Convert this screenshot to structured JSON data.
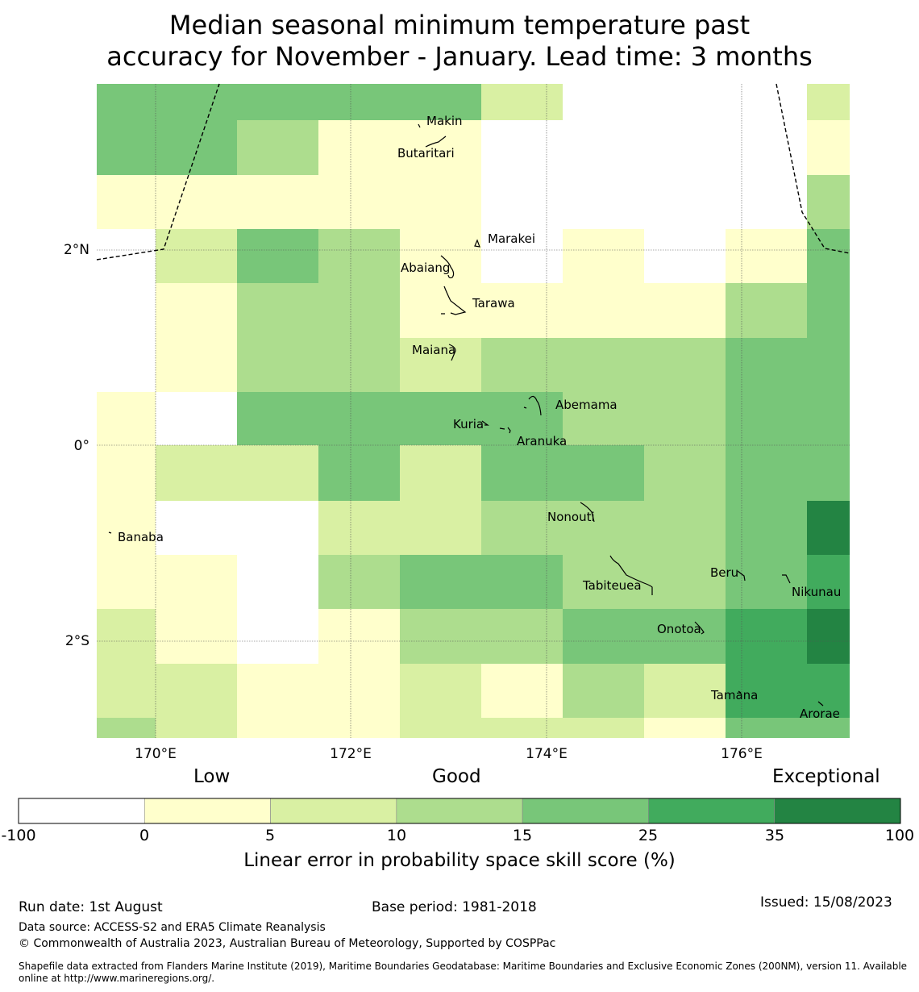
{
  "title_line1": "Median seasonal minimum temperature past",
  "title_line2": "accuracy for November - January. Lead time: 3 months",
  "map": {
    "lat_labels": [
      "2°N",
      "0°",
      "2°S"
    ],
    "lon_labels": [
      "170°E",
      "172°E",
      "174°E",
      "176°E"
    ],
    "islands": [
      "Makin",
      "Butaritari",
      "Marakei",
      "Abaiang",
      "Tarawa",
      "Maiana",
      "Abemama",
      "Kuria",
      "Aranuka",
      "Nonouti",
      "Banaba",
      "Beru",
      "Nikunau",
      "Tabiteuea",
      "Onotoa",
      "Tamana",
      "Arorae"
    ],
    "classes": [
      "#ffffff",
      "#ffffcc",
      "#d9f0a3",
      "#addd8e",
      "#78c679",
      "#41ab5d",
      "#238443"
    ],
    "grid_rows": [
      [
        4,
        4,
        4,
        4,
        4,
        2,
        0,
        0,
        0,
        2
      ],
      [
        4,
        4,
        3,
        1,
        1,
        0,
        0,
        0,
        0,
        1
      ],
      [
        1,
        1,
        1,
        1,
        1,
        0,
        0,
        0,
        0,
        3
      ],
      [
        0,
        2,
        4,
        3,
        1,
        0,
        1,
        0,
        1,
        4
      ],
      [
        0,
        1,
        3,
        3,
        1,
        1,
        1,
        1,
        3,
        4
      ],
      [
        0,
        1,
        3,
        3,
        2,
        3,
        3,
        3,
        4,
        4
      ],
      [
        1,
        0,
        4,
        4,
        4,
        4,
        3,
        3,
        4,
        4
      ],
      [
        1,
        2,
        2,
        4,
        2,
        4,
        4,
        3,
        4,
        4
      ],
      [
        1,
        0,
        0,
        2,
        2,
        3,
        3,
        3,
        4,
        6
      ],
      [
        1,
        1,
        0,
        3,
        4,
        4,
        3,
        3,
        4,
        5
      ],
      [
        2,
        1,
        0,
        1,
        3,
        3,
        4,
        4,
        5,
        6
      ],
      [
        2,
        2,
        1,
        1,
        2,
        1,
        3,
        2,
        5,
        5
      ],
      [
        3,
        2,
        1,
        1,
        2,
        2,
        2,
        1,
        4,
        4
      ]
    ]
  },
  "colorbar": {
    "low": "Low",
    "good": "Good",
    "exceptional": "Exceptional",
    "ticks": [
      "-100",
      "0",
      "5",
      "10",
      "15",
      "25",
      "35",
      "100"
    ],
    "colors": [
      "#ffffff",
      "#ffffcc",
      "#d9f0a3",
      "#addd8e",
      "#78c679",
      "#41ab5d",
      "#238443"
    ],
    "label": "Linear error in probability space skill score (%)"
  },
  "footer": {
    "run_date": "Run date: 1st August",
    "base_period": "Base period: 1981-2018",
    "issued": "Issued: 15/08/2023",
    "data_source": "Data source: ACCESS-S2 and ERA5 Climate Reanalysis",
    "copyright": "© Commonwealth of Australia 2023, Australian Bureau of Meteorology, Supported by COSPPac",
    "shapefile": "Shapefile data extracted from Flanders Marine Institute (2019), Maritime Boundaries Geodatabase: Maritime Boundaries and Exclusive Economic Zones (200NM), version 11. Available online at http://www.marineregions.org/."
  }
}
